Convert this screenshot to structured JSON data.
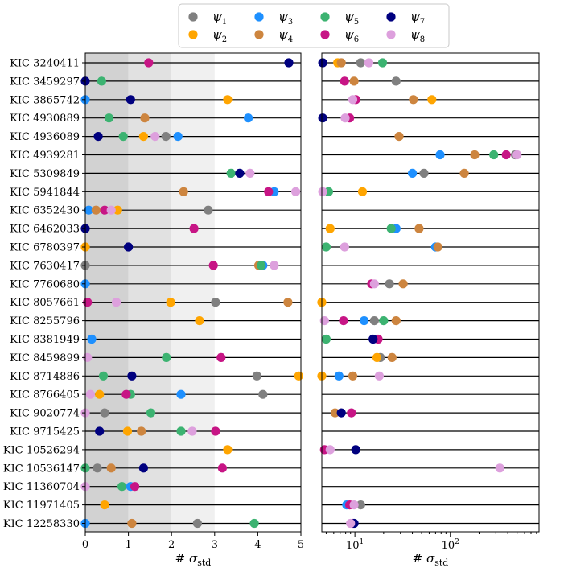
{
  "chart_data": [
    {
      "type": "dot",
      "title": "",
      "xlabel": "# σ_std",
      "xscale": "linear",
      "xlim": [
        0,
        5
      ],
      "xticks": [
        0,
        1,
        2,
        3,
        4,
        5
      ],
      "shaded_bands": [
        {
          "from": 0,
          "to": 1,
          "color": "#d2d2d2"
        },
        {
          "from": 1,
          "to": 2,
          "color": "#e1e1e1"
        },
        {
          "from": 2,
          "to": 3,
          "color": "#f0f0f0"
        }
      ],
      "categories": [
        "KIC 3240411",
        "KIC 3459297",
        "KIC 3865742",
        "KIC 4930889",
        "KIC 4936089",
        "KIC 4939281",
        "KIC 5309849",
        "KIC 5941844",
        "KIC 6352430",
        "KIC 6462033",
        "KIC 6780397",
        "KIC 7630417",
        "KIC 7760680",
        "KIC 8057661",
        "KIC 8255796",
        "KIC 8381949",
        "KIC 8459899",
        "KIC 8714886",
        "KIC 8766405",
        "KIC 9020774",
        "KIC 9715425",
        "KIC 10526294",
        "KIC 10536147",
        "KIC 11360704",
        "KIC 11971405",
        "KIC 12258330"
      ],
      "series": [
        {
          "name": "ψ1",
          "color": "#808080",
          "values": [
            null,
            null,
            null,
            null,
            1.87,
            null,
            null,
            null,
            2.85,
            null,
            null,
            0.0,
            null,
            3.02,
            null,
            null,
            null,
            3.98,
            4.12,
            0.45,
            null,
            null,
            0.28,
            null,
            null,
            2.6
          ]
        },
        {
          "name": "ψ2",
          "color": "#ffa500",
          "values": [
            null,
            null,
            3.3,
            null,
            1.35,
            null,
            null,
            null,
            0.75,
            null,
            0.0,
            null,
            null,
            1.98,
            2.65,
            null,
            null,
            4.95,
            0.33,
            null,
            0.98,
            3.3,
            null,
            null,
            0.45,
            null
          ]
        },
        {
          "name": "ψ3",
          "color": "#1e90ff",
          "values": [
            null,
            null,
            0.0,
            3.78,
            2.15,
            null,
            null,
            4.38,
            0.08,
            null,
            null,
            4.12,
            0.0,
            null,
            null,
            0.15,
            null,
            null,
            2.22,
            null,
            null,
            null,
            null,
            1.05,
            null,
            0.0
          ]
        },
        {
          "name": "ψ4",
          "color": "#cd853f",
          "values": [
            null,
            null,
            null,
            1.38,
            null,
            null,
            null,
            2.28,
            0.25,
            null,
            null,
            4.02,
            null,
            4.7,
            null,
            null,
            null,
            null,
            null,
            null,
            1.3,
            null,
            0.6,
            null,
            null,
            1.08
          ]
        },
        {
          "name": "ψ5",
          "color": "#3cb371",
          "values": [
            null,
            0.38,
            null,
            0.55,
            0.88,
            null,
            3.38,
            null,
            null,
            null,
            null,
            4.08,
            null,
            null,
            null,
            null,
            1.88,
            0.42,
            1.05,
            1.52,
            2.22,
            null,
            0.0,
            0.85,
            null,
            3.92
          ]
        },
        {
          "name": "ψ6",
          "color": "#c71585",
          "values": [
            1.47,
            null,
            null,
            null,
            null,
            null,
            null,
            4.25,
            0.45,
            2.52,
            null,
            2.97,
            null,
            0.05,
            null,
            null,
            3.15,
            null,
            0.95,
            null,
            3.02,
            null,
            3.18,
            1.15,
            null,
            null
          ]
        },
        {
          "name": "ψ7",
          "color": "#00007f",
          "values": [
            4.72,
            0.0,
            1.05,
            null,
            0.3,
            null,
            3.58,
            null,
            null,
            0.0,
            1.0,
            null,
            null,
            null,
            null,
            null,
            null,
            1.08,
            null,
            null,
            0.33,
            null,
            1.35,
            null,
            null,
            null
          ]
        },
        {
          "name": "ψ8",
          "color": "#dda0dd",
          "values": [
            null,
            null,
            null,
            null,
            1.62,
            null,
            3.82,
            4.88,
            0.6,
            null,
            null,
            4.38,
            null,
            0.72,
            null,
            null,
            0.05,
            null,
            0.12,
            0.0,
            2.48,
            null,
            null,
            0.0,
            null,
            null
          ]
        }
      ]
    },
    {
      "type": "dot",
      "title": "",
      "xlabel": "# σ_std",
      "xscale": "log",
      "xlim": [
        4.5,
        850
      ],
      "xticks": [
        10,
        100
      ],
      "xticklabels": [
        "10^1",
        "10^2"
      ],
      "categories": [
        "KIC 3240411",
        "KIC 3459297",
        "KIC 3865742",
        "KIC 4930889",
        "KIC 4936089",
        "KIC 4939281",
        "KIC 5309849",
        "KIC 5941844",
        "KIC 6352430",
        "KIC 6462033",
        "KIC 6780397",
        "KIC 7630417",
        "KIC 7760680",
        "KIC 8057661",
        "KIC 8255796",
        "KIC 8381949",
        "KIC 8459899",
        "KIC 8714886",
        "KIC 8766405",
        "KIC 9020774",
        "KIC 9715425",
        "KIC 10526294",
        "KIC 10536147",
        "KIC 11360704",
        "KIC 11971405",
        "KIC 12258330"
      ],
      "series": [
        {
          "name": "ψ1",
          "color": "#808080",
          "values": [
            11.5,
            27,
            null,
            null,
            null,
            480,
            53,
            null,
            null,
            null,
            null,
            null,
            23,
            null,
            16,
            null,
            18.5,
            null,
            null,
            null,
            null,
            null,
            null,
            null,
            11.5,
            null
          ]
        },
        {
          "name": "ψ2",
          "color": "#ffa500",
          "values": [
            6.6,
            null,
            64,
            null,
            null,
            null,
            null,
            12,
            null,
            5.5,
            null,
            null,
            null,
            4.5,
            null,
            null,
            17,
            4.5,
            null,
            null,
            null,
            null,
            null,
            null,
            null,
            null
          ]
        },
        {
          "name": "ψ3",
          "color": "#1e90ff",
          "values": [
            null,
            null,
            null,
            null,
            null,
            78,
            40,
            null,
            null,
            27,
            70,
            null,
            null,
            null,
            12.5,
            null,
            null,
            6.8,
            null,
            null,
            null,
            null,
            null,
            null,
            8.2,
            null
          ]
        },
        {
          "name": "ψ4",
          "color": "#cd853f",
          "values": [
            7.2,
            9.8,
            41,
            null,
            29,
            180,
            140,
            null,
            null,
            47,
            74,
            null,
            32,
            null,
            27,
            null,
            24.5,
            9.5,
            null,
            6.2,
            null,
            null,
            null,
            null,
            null,
            null
          ]
        },
        {
          "name": "ψ5",
          "color": "#3cb371",
          "values": [
            19.5,
            null,
            null,
            null,
            null,
            285,
            null,
            5.3,
            null,
            24,
            5.0,
            null,
            null,
            null,
            20,
            5.0,
            null,
            null,
            null,
            null,
            null,
            null,
            null,
            null,
            null,
            null
          ]
        },
        {
          "name": "ψ6",
          "color": "#c71585",
          "values": [
            null,
            7.8,
            10.2,
            8.8,
            null,
            385,
            null,
            null,
            null,
            null,
            null,
            null,
            15,
            null,
            7.6,
            17.5,
            null,
            null,
            null,
            9.2,
            null,
            4.8,
            null,
            null,
            8.8,
            9.5
          ]
        },
        {
          "name": "ψ7",
          "color": "#00007f",
          "values": [
            4.6,
            null,
            null,
            4.6,
            null,
            null,
            null,
            null,
            null,
            null,
            null,
            null,
            null,
            null,
            null,
            15.5,
            null,
            null,
            null,
            7.2,
            null,
            10.2,
            null,
            null,
            null,
            9.8
          ]
        },
        {
          "name": "ψ8",
          "color": "#dda0dd",
          "values": [
            14,
            null,
            9.5,
            7.9,
            null,
            500,
            null,
            4.6,
            null,
            null,
            7.8,
            null,
            16,
            null,
            4.8,
            null,
            null,
            18,
            null,
            null,
            null,
            5.5,
            330,
            null,
            9.8,
            9.0
          ]
        }
      ]
    }
  ],
  "legend": {
    "placement": "top-center",
    "entries": [
      {
        "symbol": "ψ",
        "sub": "1",
        "color": "#808080"
      },
      {
        "symbol": "ψ",
        "sub": "2",
        "color": "#ffa500"
      },
      {
        "symbol": "ψ",
        "sub": "3",
        "color": "#1e90ff"
      },
      {
        "symbol": "ψ",
        "sub": "4",
        "color": "#cd853f"
      },
      {
        "symbol": "ψ",
        "sub": "5",
        "color": "#3cb371"
      },
      {
        "symbol": "ψ",
        "sub": "6",
        "color": "#c71585"
      },
      {
        "symbol": "ψ",
        "sub": "7",
        "color": "#00007f"
      },
      {
        "symbol": "ψ",
        "sub": "8",
        "color": "#dda0dd"
      }
    ]
  },
  "xaxis_label": {
    "hash": "#",
    "sigma": "σ",
    "sub": "std"
  }
}
